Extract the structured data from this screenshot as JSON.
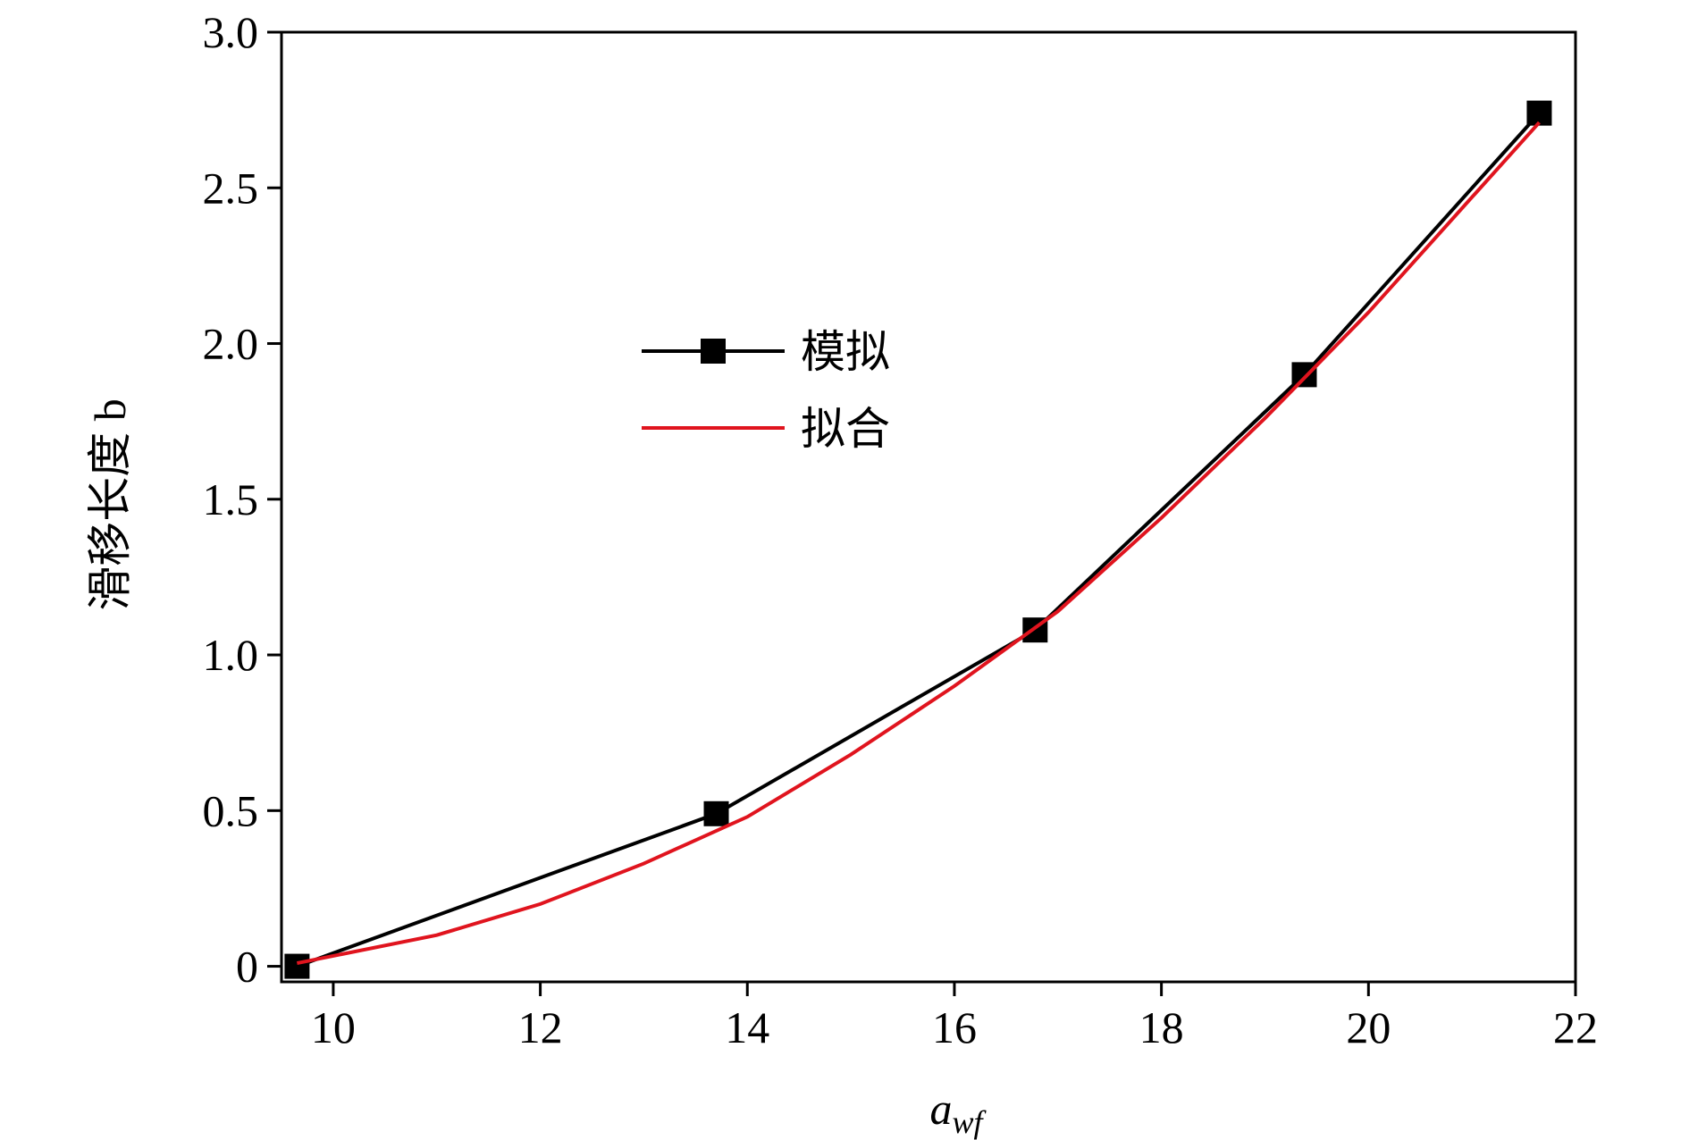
{
  "chart_data": {
    "type": "line",
    "xlabel": {
      "base": "a",
      "sub": "wf"
    },
    "ylabel": "滑移长度 b",
    "xlim": [
      9.5,
      22
    ],
    "xticks": [
      10,
      12,
      14,
      16,
      18,
      20,
      22
    ],
    "ylim": [
      -0.05,
      3.0
    ],
    "yticks": [
      0,
      0.5,
      {
        "value": 1,
        "label": "1.0"
      },
      1.5,
      {
        "value": 2,
        "label": "2.0"
      },
      2.5,
      {
        "value": 3,
        "label": "3.0"
      }
    ],
    "legend": "upper left",
    "series": [
      {
        "name": "模拟",
        "color": "#000000",
        "marker": "square",
        "x": [
          9.65,
          13.7,
          16.78,
          19.38,
          21.65
        ],
        "values": [
          0,
          0.49,
          1.08,
          1.9,
          2.74
        ]
      },
      {
        "name": "拟合",
        "color": "#e0141e",
        "marker": "none",
        "x": [
          9.65,
          11,
          12,
          13,
          14,
          15,
          16,
          17,
          18,
          19,
          20,
          21,
          21.65
        ],
        "values": [
          0.01,
          0.1,
          0.2,
          0.33,
          0.48,
          0.68,
          0.9,
          1.14,
          1.44,
          1.76,
          2.1,
          2.47,
          2.71
        ]
      }
    ]
  }
}
